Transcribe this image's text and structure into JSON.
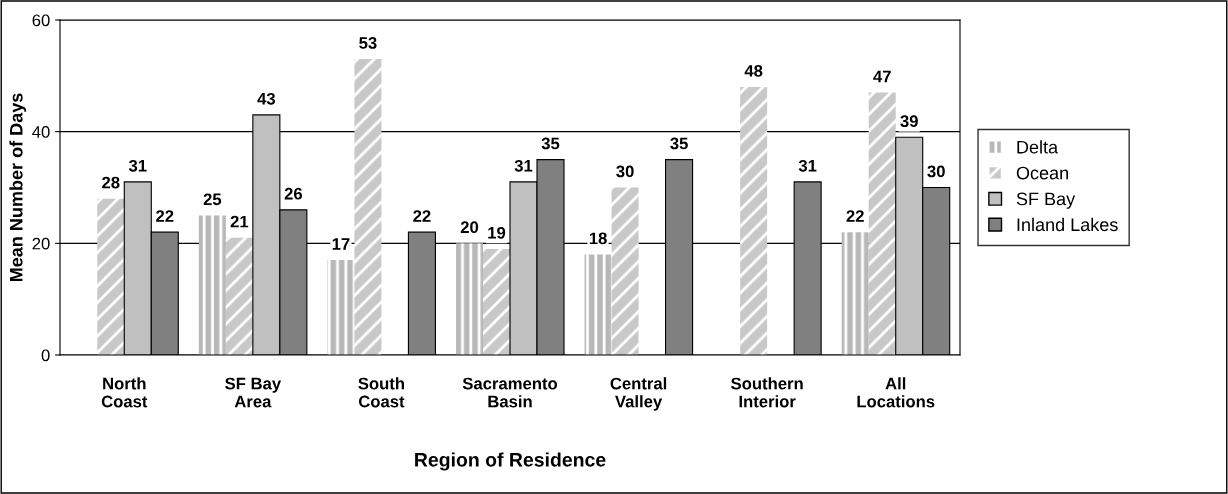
{
  "chart_data": {
    "type": "bar",
    "xlabel": "Region of Residence",
    "ylabel": "Mean Number of Days",
    "categories": [
      "North\nCoast",
      "SF Bay\nArea",
      "South\nCoast",
      "Sacramento\nBasin",
      "Central\nValley",
      "Southern\nInterior",
      "All\nLocations"
    ],
    "series": [
      {
        "name": "Delta",
        "color": "#b8b8b8",
        "values": [
          null,
          25,
          17,
          20,
          18,
          null,
          22
        ]
      },
      {
        "name": "Ocean",
        "color": "#c8c8c8",
        "values": [
          28,
          21,
          53,
          19,
          30,
          48,
          47
        ]
      },
      {
        "name": "SF Bay",
        "color": "#c0c0c0",
        "values": [
          31,
          43,
          null,
          31,
          null,
          null,
          39
        ]
      },
      {
        "name": "Inland Lakes",
        "color": "#808080",
        "values": [
          22,
          26,
          22,
          35,
          35,
          31,
          30
        ]
      }
    ],
    "ylim": [
      0,
      60
    ],
    "yticks": [
      0,
      20,
      40,
      60
    ],
    "grid": "y",
    "legend": "right",
    "data_labels": true
  }
}
